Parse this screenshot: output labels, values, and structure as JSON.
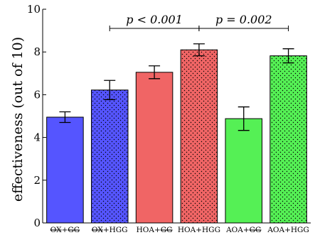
{
  "chart_data": {
    "type": "bar",
    "ylabel": "effectiveness (out of 10)",
    "ylim": [
      0,
      10
    ],
    "yticks": [
      "0",
      "2",
      "4",
      "6",
      "8",
      "10"
    ],
    "grid": false,
    "categories": [
      {
        "pre": "",
        "struck": "OX",
        "mid": "+",
        "struck2": "GG",
        "post": ""
      },
      {
        "pre": "",
        "struck": "OX",
        "mid": "+HGG",
        "struck2": "",
        "post": ""
      },
      {
        "pre": "HOA+",
        "struck": "",
        "mid": "",
        "struck2": "GG",
        "post": ""
      },
      {
        "pre": "HOA+HGG",
        "struck": "",
        "mid": "",
        "struck2": "",
        "post": ""
      },
      {
        "pre": "AOA+",
        "struck": "",
        "mid": "",
        "struck2": "GG",
        "post": ""
      },
      {
        "pre": "AOA+HGG",
        "struck": "",
        "mid": "",
        "struck2": "",
        "post": ""
      }
    ],
    "values": [
      4.95,
      6.22,
      7.05,
      8.1,
      4.88,
      7.82
    ],
    "errors": [
      0.25,
      0.45,
      0.3,
      0.28,
      0.55,
      0.33
    ],
    "colors": [
      "#5555ff",
      "#5555ff",
      "#f06565",
      "#f06565",
      "#55f055",
      "#55f055"
    ],
    "dotted": [
      false,
      true,
      false,
      true,
      false,
      true
    ],
    "annotations": [
      {
        "label": "p < 0.001",
        "from": 1,
        "to": 3
      },
      {
        "label": "p = 0.002",
        "from": 3,
        "to": 5
      }
    ]
  }
}
